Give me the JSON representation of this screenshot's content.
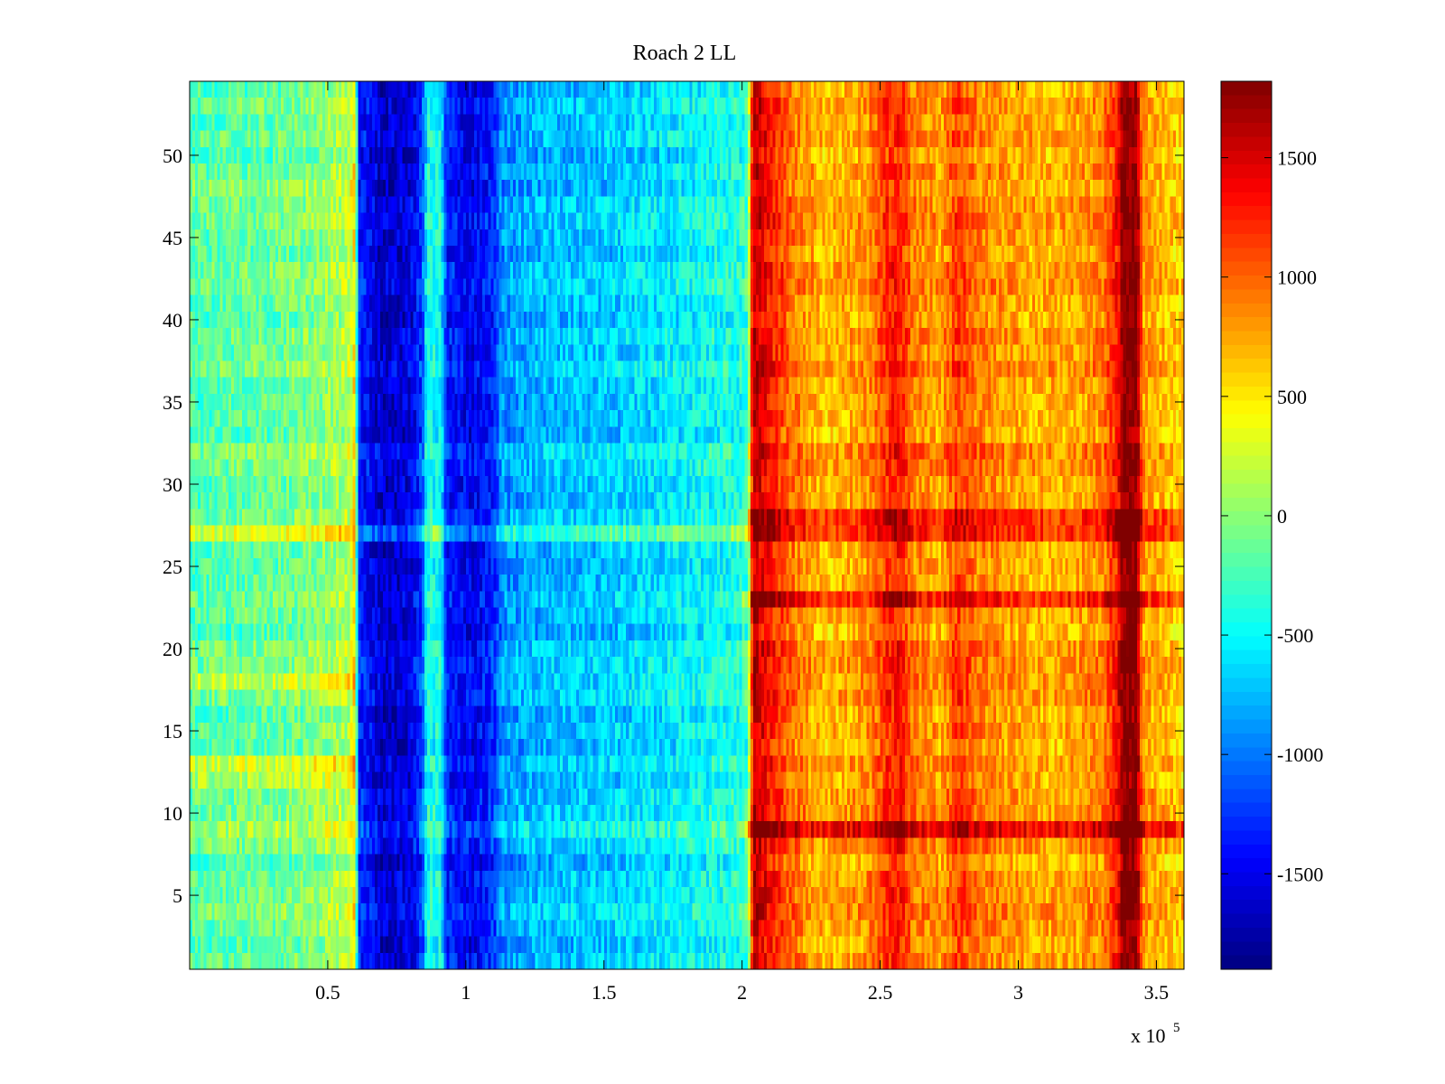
{
  "chart_data": {
    "type": "heatmap",
    "title": "Roach 2 LL",
    "xlabel": "",
    "ylabel": "",
    "x_range": [
      0,
      360000
    ],
    "y_range": [
      0.5,
      54.5
    ],
    "n_rows": 54,
    "n_cols": 360,
    "x_ticks": [
      50000,
      100000,
      150000,
      200000,
      250000,
      300000,
      350000
    ],
    "x_tick_labels": [
      "0.5",
      "1",
      "1.5",
      "2",
      "2.5",
      "3",
      "3.5"
    ],
    "x_exponent_label": "x 10",
    "x_exponent": "5",
    "y_ticks": [
      5,
      10,
      15,
      20,
      25,
      30,
      35,
      40,
      45,
      50
    ],
    "y_tick_labels": [
      "5",
      "10",
      "15",
      "20",
      "25",
      "30",
      "35",
      "40",
      "45",
      "50"
    ],
    "colorbar": {
      "colormap": "jet",
      "range": [
        -1900,
        1820
      ],
      "ticks": [
        1500,
        1000,
        500,
        0,
        -500,
        -1000,
        -1500
      ],
      "tick_labels": [
        "1500",
        "1000",
        "500",
        "0",
        "-500",
        "-1000",
        "-1500"
      ]
    },
    "column_profile": [
      {
        "x": 0,
        "value": -200
      },
      {
        "x": 40000,
        "value": -100
      },
      {
        "x": 58000,
        "value": 150
      },
      {
        "x": 60000,
        "value": 600
      },
      {
        "x": 61000,
        "value": -1300
      },
      {
        "x": 70000,
        "value": -1650
      },
      {
        "x": 80000,
        "value": -1550
      },
      {
        "x": 84000,
        "value": -1250
      },
      {
        "x": 86000,
        "value": -450
      },
      {
        "x": 91000,
        "value": -450
      },
      {
        "x": 93000,
        "value": -1350
      },
      {
        "x": 102000,
        "value": -1500
      },
      {
        "x": 110000,
        "value": -1300
      },
      {
        "x": 113000,
        "value": -900
      },
      {
        "x": 130000,
        "value": -750
      },
      {
        "x": 150000,
        "value": -700
      },
      {
        "x": 170000,
        "value": -600
      },
      {
        "x": 185000,
        "value": -500
      },
      {
        "x": 200000,
        "value": -400
      },
      {
        "x": 202000,
        "value": -300
      },
      {
        "x": 204000,
        "value": 1600
      },
      {
        "x": 210000,
        "value": 1300
      },
      {
        "x": 218000,
        "value": 950
      },
      {
        "x": 230000,
        "value": 650
      },
      {
        "x": 245000,
        "value": 800
      },
      {
        "x": 252000,
        "value": 1150
      },
      {
        "x": 257000,
        "value": 1300
      },
      {
        "x": 262000,
        "value": 900
      },
      {
        "x": 272000,
        "value": 750
      },
      {
        "x": 278000,
        "value": 1150
      },
      {
        "x": 285000,
        "value": 900
      },
      {
        "x": 300000,
        "value": 750
      },
      {
        "x": 315000,
        "value": 700
      },
      {
        "x": 330000,
        "value": 850
      },
      {
        "x": 336000,
        "value": 1300
      },
      {
        "x": 338000,
        "value": 1800
      },
      {
        "x": 343000,
        "value": 1800
      },
      {
        "x": 345000,
        "value": 800
      },
      {
        "x": 360000,
        "value": 550
      }
    ],
    "row_offsets": [
      {
        "row": 9,
        "value": 600,
        "x_from": 200000
      },
      {
        "row": 9,
        "value": 200,
        "x_to": 200000
      },
      {
        "row": 23,
        "value": 450,
        "x_from": 200000
      },
      {
        "row": 27,
        "value": 350
      },
      {
        "row": 28,
        "value": 350,
        "x_from": 200000
      },
      {
        "row": 18,
        "value": 300,
        "x_to": 60000
      },
      {
        "row": 48,
        "value": 250,
        "x_to": 60000
      },
      {
        "row": 12,
        "value": 300,
        "x_to": 60000
      },
      {
        "row": 13,
        "value": 350,
        "x_to": 60000
      },
      {
        "row": 32,
        "value": 200
      },
      {
        "row": 17,
        "value": 150
      }
    ]
  }
}
